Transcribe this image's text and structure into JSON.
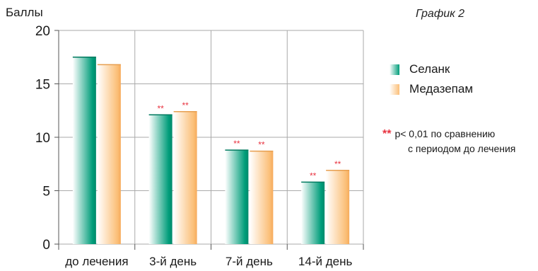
{
  "heading_fragment": "",
  "graph_label": "График 2",
  "legend_note_marker": "**",
  "legend_note_line1": "р< 0,01 по сравнению",
  "legend_note_line2": "с периодом до лечения",
  "colors": {
    "series_0": "#009d7a",
    "series_1": "#fbbf78",
    "significance": "#e83340",
    "grid": "#aaaaaa"
  },
  "chart_data": {
    "type": "bar",
    "title": "",
    "ylabel": "Баллы",
    "xlabel": "",
    "ylim": [
      0,
      20
    ],
    "yticks": [
      0,
      5,
      10,
      15,
      20
    ],
    "categories": [
      "до лечения",
      "3-й день",
      "7-й день",
      "14-й день"
    ],
    "grid": true,
    "legend_position": "right",
    "series": [
      {
        "name": "Селанк",
        "values": [
          17.5,
          12.1,
          8.8,
          5.8
        ],
        "significance": [
          "",
          "**",
          "**",
          "**"
        ]
      },
      {
        "name": "Медазепам",
        "values": [
          16.8,
          12.4,
          8.7,
          6.9
        ],
        "significance": [
          "",
          "**",
          "**",
          "**"
        ]
      }
    ]
  }
}
